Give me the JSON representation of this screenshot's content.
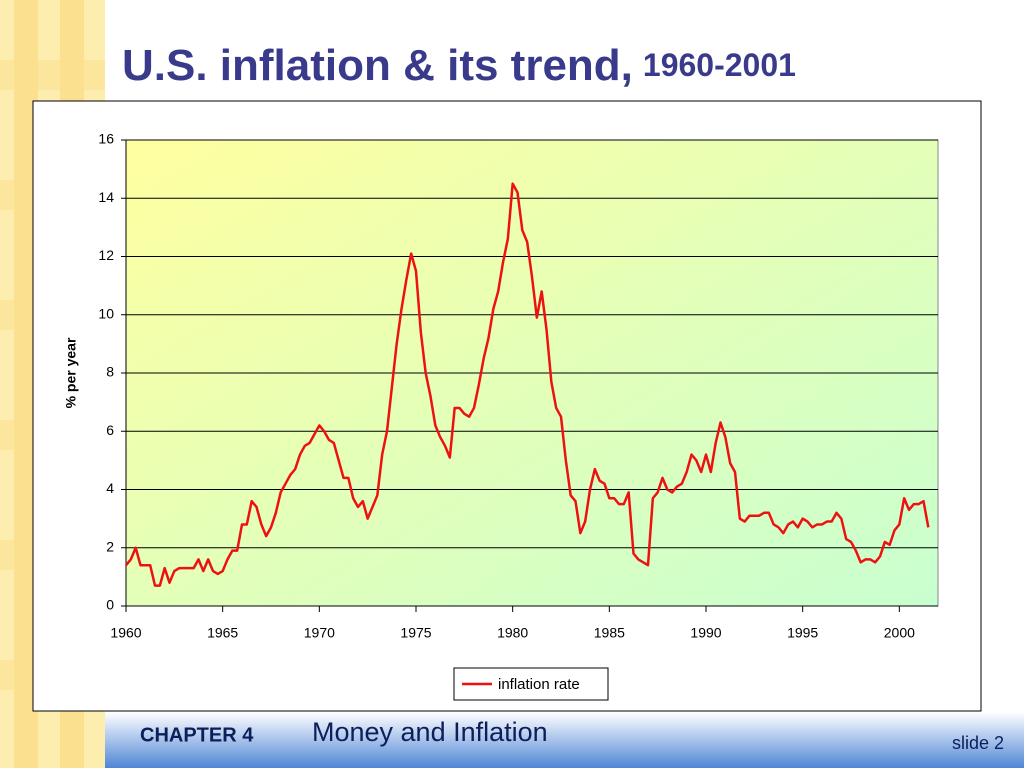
{
  "chart_data": {
    "type": "line",
    "title": "U.S. inflation & its trend,",
    "subtitle": "1960-2001",
    "y_label": "% per year",
    "xlim": [
      1960,
      2002
    ],
    "xticks": [
      1960,
      1965,
      1970,
      1975,
      1980,
      1985,
      1990,
      1995,
      2000
    ],
    "ylim": [
      0,
      16
    ],
    "yticks": [
      0,
      2,
      4,
      6,
      8,
      10,
      12,
      14,
      16
    ],
    "grid": true,
    "legend": "bottom",
    "x": [
      1960.0,
      1960.25,
      1960.5,
      1960.75,
      1961.0,
      1961.25,
      1961.5,
      1961.75,
      1962.0,
      1962.25,
      1962.5,
      1962.75,
      1963.0,
      1963.25,
      1963.5,
      1963.75,
      1964.0,
      1964.25,
      1964.5,
      1964.75,
      1965.0,
      1965.25,
      1965.5,
      1965.75,
      1966.0,
      1966.25,
      1966.5,
      1966.75,
      1967.0,
      1967.25,
      1967.5,
      1967.75,
      1968.0,
      1968.25,
      1968.5,
      1968.75,
      1969.0,
      1969.25,
      1969.5,
      1969.75,
      1970.0,
      1970.25,
      1970.5,
      1970.75,
      1971.0,
      1971.25,
      1971.5,
      1971.75,
      1972.0,
      1972.25,
      1972.5,
      1972.75,
      1973.0,
      1973.25,
      1973.5,
      1973.75,
      1974.0,
      1974.25,
      1974.5,
      1974.75,
      1975.0,
      1975.25,
      1975.5,
      1975.75,
      1976.0,
      1976.25,
      1976.5,
      1976.75,
      1977.0,
      1977.25,
      1977.5,
      1977.75,
      1978.0,
      1978.25,
      1978.5,
      1978.75,
      1979.0,
      1979.25,
      1979.5,
      1979.75,
      1980.0,
      1980.25,
      1980.5,
      1980.75,
      1981.0,
      1981.25,
      1981.5,
      1981.75,
      1982.0,
      1982.25,
      1982.5,
      1982.75,
      1983.0,
      1983.25,
      1983.5,
      1983.75,
      1984.0,
      1984.25,
      1984.5,
      1984.75,
      1985.0,
      1985.25,
      1985.5,
      1985.75,
      1986.0,
      1986.25,
      1986.5,
      1986.75,
      1987.0,
      1987.25,
      1987.5,
      1987.75,
      1988.0,
      1988.25,
      1988.5,
      1988.75,
      1989.0,
      1989.25,
      1989.5,
      1989.75,
      1990.0,
      1990.25,
      1990.5,
      1990.75,
      1991.0,
      1991.25,
      1991.5,
      1991.75,
      1992.0,
      1992.25,
      1992.5,
      1992.75,
      1993.0,
      1993.25,
      1993.5,
      1993.75,
      1994.0,
      1994.25,
      1994.5,
      1994.75,
      1995.0,
      1995.25,
      1995.5,
      1995.75,
      1996.0,
      1996.25,
      1996.5,
      1996.75,
      1997.0,
      1997.25,
      1997.5,
      1997.75,
      1998.0,
      1998.25,
      1998.5,
      1998.75,
      1999.0,
      1999.25,
      1999.5,
      1999.75,
      2000.0,
      2000.25,
      2000.5,
      2000.75,
      2001.0,
      2001.25,
      2001.5
    ],
    "series": [
      {
        "name": "inflation rate",
        "color": "#ee1111",
        "values": [
          1.4,
          1.6,
          2.0,
          1.4,
          1.4,
          1.4,
          0.7,
          0.7,
          1.3,
          0.8,
          1.2,
          1.3,
          1.3,
          1.3,
          1.3,
          1.6,
          1.2,
          1.6,
          1.2,
          1.1,
          1.2,
          1.6,
          1.9,
          1.9,
          2.8,
          2.8,
          3.6,
          3.4,
          2.8,
          2.4,
          2.7,
          3.2,
          3.9,
          4.2,
          4.5,
          4.7,
          5.2,
          5.5,
          5.6,
          5.9,
          6.2,
          6.0,
          5.7,
          5.6,
          5.0,
          4.4,
          4.4,
          3.7,
          3.4,
          3.6,
          3.0,
          3.4,
          3.8,
          5.2,
          6.0,
          7.5,
          9.0,
          10.2,
          11.2,
          12.1,
          11.5,
          9.4,
          8.0,
          7.2,
          6.2,
          5.8,
          5.5,
          5.1,
          6.8,
          6.8,
          6.6,
          6.5,
          6.8,
          7.6,
          8.5,
          9.2,
          10.2,
          10.8,
          11.8,
          12.6,
          14.5,
          14.2,
          12.9,
          12.5,
          11.3,
          9.9,
          10.8,
          9.5,
          7.7,
          6.8,
          6.5,
          5.0,
          3.8,
          3.6,
          2.5,
          2.9,
          4.0,
          4.7,
          4.3,
          4.2,
          3.7,
          3.7,
          3.5,
          3.5,
          3.9,
          1.8,
          1.6,
          1.5,
          1.4,
          3.7,
          3.9,
          4.4,
          4.0,
          3.9,
          4.1,
          4.2,
          4.6,
          5.2,
          5.0,
          4.6,
          5.2,
          4.6,
          5.6,
          6.3,
          5.8,
          4.9,
          4.6,
          3.0,
          2.9,
          3.1,
          3.1,
          3.1,
          3.2,
          3.2,
          2.8,
          2.7,
          2.5,
          2.8,
          2.9,
          2.7,
          3.0,
          2.9,
          2.7,
          2.8,
          2.8,
          2.9,
          2.9,
          3.2,
          3.0,
          2.3,
          2.2,
          1.9,
          1.5,
          1.6,
          1.6,
          1.5,
          1.7,
          2.2,
          2.1,
          2.6,
          2.8,
          3.7,
          3.3,
          3.5,
          3.5,
          3.6,
          2.7
        ]
      }
    ]
  },
  "footer": {
    "chapter": "CHAPTER 4",
    "topic": "Money and Inflation",
    "slide": "slide 2"
  }
}
